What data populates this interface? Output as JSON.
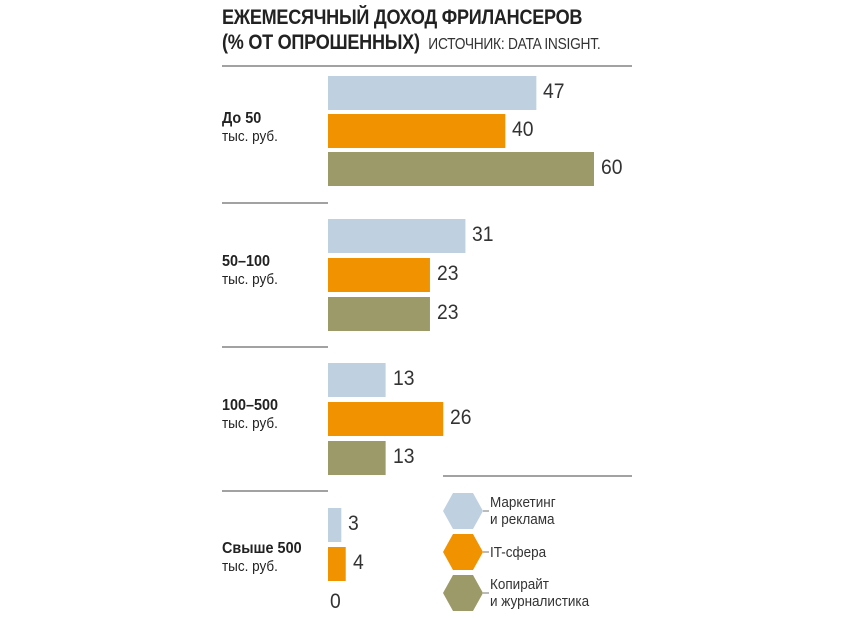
{
  "chart_data": {
    "type": "bar",
    "orientation": "horizontal",
    "title": "ЕЖЕМЕСЯЧНЫЙ ДОХОД ФРИЛАНСЕРОВ",
    "subtitle": "(% ОТ ОПРОШЕННЫХ)",
    "source": "ИСТОЧНИК: DATA INSIGHT.",
    "categories": [
      {
        "main": "До 50",
        "unit": "тыс. руб."
      },
      {
        "main": "50–100",
        "unit": "тыс. руб."
      },
      {
        "main": "100–500",
        "unit": "тыс. руб."
      },
      {
        "main": "Свыше 500",
        "unit": "тыс. руб."
      }
    ],
    "series": [
      {
        "name": "Маркетинг и реклама",
        "label_lines": [
          "Маркетинг",
          "и реклама"
        ],
        "color": "#bfd0e0",
        "values": [
          47,
          31,
          13,
          3
        ]
      },
      {
        "name": "IT-сфера",
        "label_lines": [
          "IT-сфера"
        ],
        "color": "#f19300",
        "values": [
          40,
          23,
          26,
          4
        ]
      },
      {
        "name": "Копирайт и журналистика",
        "label_lines": [
          "Копирайт",
          "и журналистика"
        ],
        "color": "#9c9a68",
        "values": [
          60,
          23,
          13,
          0
        ]
      }
    ],
    "xlim": [
      0,
      60
    ],
    "legend": "bottom-right"
  }
}
